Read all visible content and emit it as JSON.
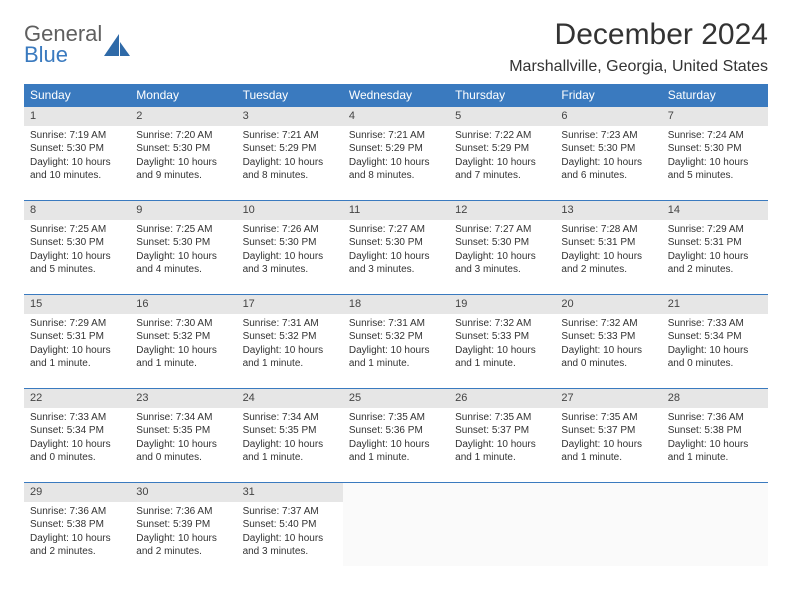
{
  "logo": {
    "line1": "General",
    "line2": "Blue"
  },
  "title": "December 2024",
  "location": "Marshallville, Georgia, United States",
  "colors": {
    "header_bg": "#3a7abf",
    "header_text": "#ffffff",
    "date_bar_bg": "#e6e6e6",
    "divider": "#3a7abf",
    "body_text": "#333333"
  },
  "day_names": [
    "Sunday",
    "Monday",
    "Tuesday",
    "Wednesday",
    "Thursday",
    "Friday",
    "Saturday"
  ],
  "weeks": [
    [
      {
        "date": "1",
        "sunrise": "Sunrise: 7:19 AM",
        "sunset": "Sunset: 5:30 PM",
        "daylight1": "Daylight: 10 hours",
        "daylight2": "and 10 minutes."
      },
      {
        "date": "2",
        "sunrise": "Sunrise: 7:20 AM",
        "sunset": "Sunset: 5:30 PM",
        "daylight1": "Daylight: 10 hours",
        "daylight2": "and 9 minutes."
      },
      {
        "date": "3",
        "sunrise": "Sunrise: 7:21 AM",
        "sunset": "Sunset: 5:29 PM",
        "daylight1": "Daylight: 10 hours",
        "daylight2": "and 8 minutes."
      },
      {
        "date": "4",
        "sunrise": "Sunrise: 7:21 AM",
        "sunset": "Sunset: 5:29 PM",
        "daylight1": "Daylight: 10 hours",
        "daylight2": "and 8 minutes."
      },
      {
        "date": "5",
        "sunrise": "Sunrise: 7:22 AM",
        "sunset": "Sunset: 5:29 PM",
        "daylight1": "Daylight: 10 hours",
        "daylight2": "and 7 minutes."
      },
      {
        "date": "6",
        "sunrise": "Sunrise: 7:23 AM",
        "sunset": "Sunset: 5:30 PM",
        "daylight1": "Daylight: 10 hours",
        "daylight2": "and 6 minutes."
      },
      {
        "date": "7",
        "sunrise": "Sunrise: 7:24 AM",
        "sunset": "Sunset: 5:30 PM",
        "daylight1": "Daylight: 10 hours",
        "daylight2": "and 5 minutes."
      }
    ],
    [
      {
        "date": "8",
        "sunrise": "Sunrise: 7:25 AM",
        "sunset": "Sunset: 5:30 PM",
        "daylight1": "Daylight: 10 hours",
        "daylight2": "and 5 minutes."
      },
      {
        "date": "9",
        "sunrise": "Sunrise: 7:25 AM",
        "sunset": "Sunset: 5:30 PM",
        "daylight1": "Daylight: 10 hours",
        "daylight2": "and 4 minutes."
      },
      {
        "date": "10",
        "sunrise": "Sunrise: 7:26 AM",
        "sunset": "Sunset: 5:30 PM",
        "daylight1": "Daylight: 10 hours",
        "daylight2": "and 3 minutes."
      },
      {
        "date": "11",
        "sunrise": "Sunrise: 7:27 AM",
        "sunset": "Sunset: 5:30 PM",
        "daylight1": "Daylight: 10 hours",
        "daylight2": "and 3 minutes."
      },
      {
        "date": "12",
        "sunrise": "Sunrise: 7:27 AM",
        "sunset": "Sunset: 5:30 PM",
        "daylight1": "Daylight: 10 hours",
        "daylight2": "and 3 minutes."
      },
      {
        "date": "13",
        "sunrise": "Sunrise: 7:28 AM",
        "sunset": "Sunset: 5:31 PM",
        "daylight1": "Daylight: 10 hours",
        "daylight2": "and 2 minutes."
      },
      {
        "date": "14",
        "sunrise": "Sunrise: 7:29 AM",
        "sunset": "Sunset: 5:31 PM",
        "daylight1": "Daylight: 10 hours",
        "daylight2": "and 2 minutes."
      }
    ],
    [
      {
        "date": "15",
        "sunrise": "Sunrise: 7:29 AM",
        "sunset": "Sunset: 5:31 PM",
        "daylight1": "Daylight: 10 hours",
        "daylight2": "and 1 minute."
      },
      {
        "date": "16",
        "sunrise": "Sunrise: 7:30 AM",
        "sunset": "Sunset: 5:32 PM",
        "daylight1": "Daylight: 10 hours",
        "daylight2": "and 1 minute."
      },
      {
        "date": "17",
        "sunrise": "Sunrise: 7:31 AM",
        "sunset": "Sunset: 5:32 PM",
        "daylight1": "Daylight: 10 hours",
        "daylight2": "and 1 minute."
      },
      {
        "date": "18",
        "sunrise": "Sunrise: 7:31 AM",
        "sunset": "Sunset: 5:32 PM",
        "daylight1": "Daylight: 10 hours",
        "daylight2": "and 1 minute."
      },
      {
        "date": "19",
        "sunrise": "Sunrise: 7:32 AM",
        "sunset": "Sunset: 5:33 PM",
        "daylight1": "Daylight: 10 hours",
        "daylight2": "and 1 minute."
      },
      {
        "date": "20",
        "sunrise": "Sunrise: 7:32 AM",
        "sunset": "Sunset: 5:33 PM",
        "daylight1": "Daylight: 10 hours",
        "daylight2": "and 0 minutes."
      },
      {
        "date": "21",
        "sunrise": "Sunrise: 7:33 AM",
        "sunset": "Sunset: 5:34 PM",
        "daylight1": "Daylight: 10 hours",
        "daylight2": "and 0 minutes."
      }
    ],
    [
      {
        "date": "22",
        "sunrise": "Sunrise: 7:33 AM",
        "sunset": "Sunset: 5:34 PM",
        "daylight1": "Daylight: 10 hours",
        "daylight2": "and 0 minutes."
      },
      {
        "date": "23",
        "sunrise": "Sunrise: 7:34 AM",
        "sunset": "Sunset: 5:35 PM",
        "daylight1": "Daylight: 10 hours",
        "daylight2": "and 0 minutes."
      },
      {
        "date": "24",
        "sunrise": "Sunrise: 7:34 AM",
        "sunset": "Sunset: 5:35 PM",
        "daylight1": "Daylight: 10 hours",
        "daylight2": "and 1 minute."
      },
      {
        "date": "25",
        "sunrise": "Sunrise: 7:35 AM",
        "sunset": "Sunset: 5:36 PM",
        "daylight1": "Daylight: 10 hours",
        "daylight2": "and 1 minute."
      },
      {
        "date": "26",
        "sunrise": "Sunrise: 7:35 AM",
        "sunset": "Sunset: 5:37 PM",
        "daylight1": "Daylight: 10 hours",
        "daylight2": "and 1 minute."
      },
      {
        "date": "27",
        "sunrise": "Sunrise: 7:35 AM",
        "sunset": "Sunset: 5:37 PM",
        "daylight1": "Daylight: 10 hours",
        "daylight2": "and 1 minute."
      },
      {
        "date": "28",
        "sunrise": "Sunrise: 7:36 AM",
        "sunset": "Sunset: 5:38 PM",
        "daylight1": "Daylight: 10 hours",
        "daylight2": "and 1 minute."
      }
    ],
    [
      {
        "date": "29",
        "sunrise": "Sunrise: 7:36 AM",
        "sunset": "Sunset: 5:38 PM",
        "daylight1": "Daylight: 10 hours",
        "daylight2": "and 2 minutes."
      },
      {
        "date": "30",
        "sunrise": "Sunrise: 7:36 AM",
        "sunset": "Sunset: 5:39 PM",
        "daylight1": "Daylight: 10 hours",
        "daylight2": "and 2 minutes."
      },
      {
        "date": "31",
        "sunrise": "Sunrise: 7:37 AM",
        "sunset": "Sunset: 5:40 PM",
        "daylight1": "Daylight: 10 hours",
        "daylight2": "and 3 minutes."
      },
      null,
      null,
      null,
      null
    ]
  ]
}
